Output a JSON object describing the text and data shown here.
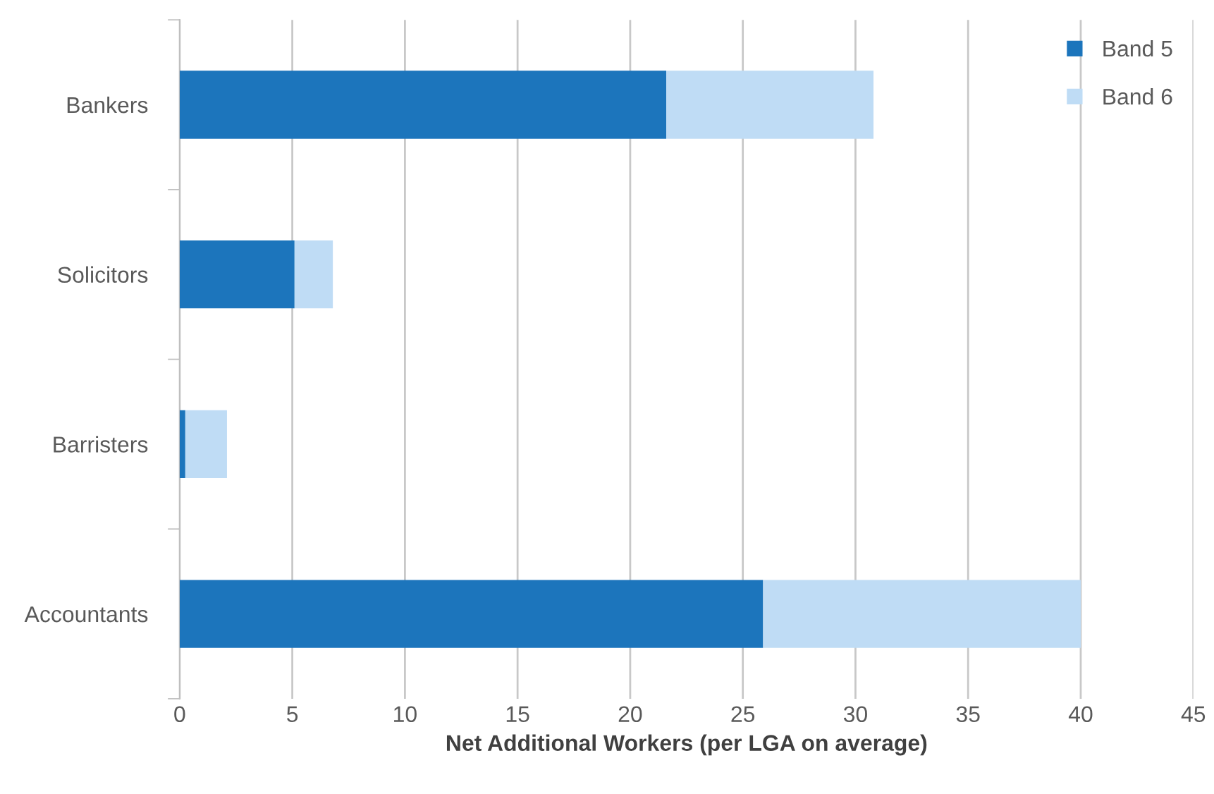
{
  "chart_data": {
    "type": "bar",
    "orientation": "horizontal",
    "stacked": true,
    "categories": [
      "Bankers",
      "Solicitors",
      "Barristers",
      "Accountants"
    ],
    "series": [
      {
        "name": "Band 5",
        "color": "#1c75bc",
        "values": [
          21.6,
          5.1,
          0.25,
          25.9
        ]
      },
      {
        "name": "Band 6",
        "color": "#bfdcf5",
        "values": [
          9.2,
          1.7,
          1.85,
          14.1
        ]
      }
    ],
    "xlabel": "Net Additional Workers (per LGA on average)",
    "xlim": [
      0,
      45
    ],
    "xticks": [
      0,
      5,
      10,
      15,
      20,
      25,
      30,
      35,
      40,
      45
    ],
    "grid": "x",
    "legend": "top right"
  }
}
